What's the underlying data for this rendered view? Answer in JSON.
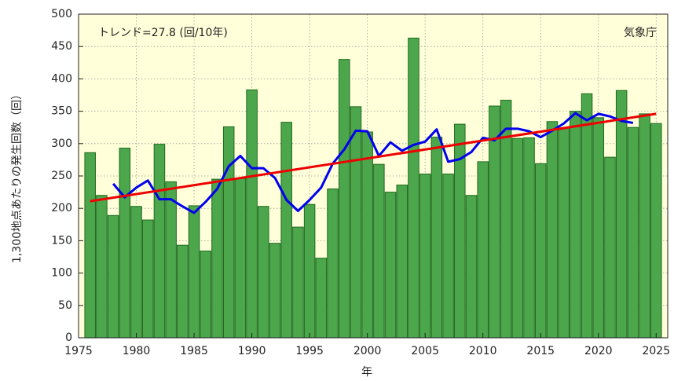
{
  "chart_data": {
    "type": "bar",
    "x": [
      1976,
      1977,
      1978,
      1979,
      1980,
      1981,
      1982,
      1983,
      1984,
      1985,
      1986,
      1987,
      1988,
      1989,
      1990,
      1991,
      1992,
      1993,
      1994,
      1995,
      1996,
      1997,
      1998,
      1999,
      2000,
      2001,
      2002,
      2003,
      2004,
      2005,
      2006,
      2007,
      2008,
      2009,
      2010,
      2011,
      2012,
      2013,
      2014,
      2015,
      2016,
      2017,
      2018,
      2019,
      2020,
      2021,
      2022,
      2023,
      2024,
      2025
    ],
    "values": [
      286,
      220,
      189,
      293,
      203,
      182,
      299,
      241,
      143,
      204,
      134,
      245,
      326,
      246,
      383,
      203,
      146,
      333,
      171,
      206,
      123,
      230,
      430,
      357,
      318,
      268,
      225,
      236,
      463,
      253,
      310,
      253,
      330,
      220,
      272,
      358,
      367,
      308,
      309,
      269,
      334,
      324,
      350,
      377,
      340,
      279,
      382,
      325,
      346,
      331
    ],
    "color": "#4ca64c",
    "moving_average": {
      "x": [
        1978,
        1979,
        1980,
        1981,
        1982,
        1983,
        1984,
        1985,
        1986,
        1987,
        1988,
        1989,
        1990,
        1991,
        1992,
        1993,
        1994,
        1995,
        1996,
        1997,
        1998,
        1999,
        2000,
        2001,
        2002,
        2003,
        2004,
        2005,
        2006,
        2007,
        2008,
        2009,
        2010,
        2011,
        2012,
        2013,
        2014,
        2015,
        2016,
        2017,
        2018,
        2019,
        2020,
        2021,
        2022,
        2023
      ],
      "values": [
        238,
        217,
        232,
        243,
        214,
        214,
        203,
        193,
        210,
        230,
        265,
        281,
        262,
        262,
        247,
        213,
        196,
        213,
        232,
        269,
        291,
        320,
        319,
        281,
        302,
        289,
        298,
        303,
        322,
        272,
        276,
        287,
        309,
        305,
        323,
        323,
        319,
        310,
        320,
        331,
        347,
        336,
        346,
        342,
        335,
        332
      ],
      "color": "#0000ee"
    },
    "trend": {
      "x": [
        1976,
        2025
      ],
      "values": [
        211,
        346
      ],
      "color": "#ee0000"
    },
    "annotations": [
      "トレンド=27.8 (回/10年)",
      "気象庁"
    ],
    "xlabel": "年",
    "ylabel": "1,300地点あたりの発生回数（回）",
    "xlim": [
      1975,
      2026
    ],
    "ylim": [
      0,
      500
    ],
    "xticks": [
      1975,
      1980,
      1985,
      1990,
      1995,
      2000,
      2005,
      2010,
      2015,
      2020,
      2025
    ],
    "yticks": [
      0,
      50,
      100,
      150,
      200,
      250,
      300,
      350,
      400,
      450,
      500
    ],
    "grid": true,
    "background": "#ffffd9"
  }
}
